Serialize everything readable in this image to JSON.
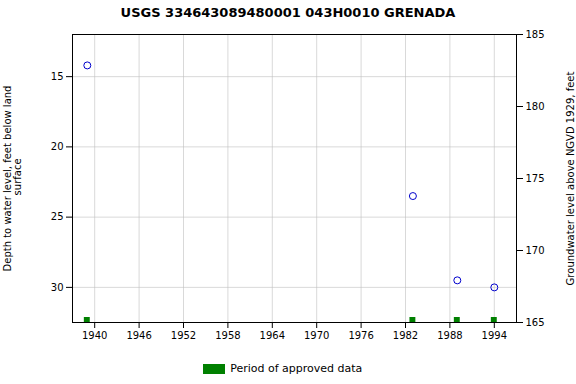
{
  "chart_data": {
    "type": "scatter",
    "title": "USGS 334643089480001 043H0010  GRENADA",
    "x": [
      1939,
      1983,
      1989,
      1994
    ],
    "series": [
      {
        "color": "#0000cc",
        "marker": "circle",
        "type": "scatter",
        "values": [
          14.2,
          23.5,
          29.5,
          30.0
        ]
      },
      {
        "name": "Period of approved data",
        "color": "#008000",
        "type": "bar",
        "x": [
          1939,
          1983,
          1989,
          1994
        ]
      }
    ],
    "xlim": [
      1937,
      1997
    ],
    "xticks": [
      1940,
      1946,
      1952,
      1958,
      1964,
      1970,
      1976,
      1982,
      1988,
      1994
    ],
    "ylim": [
      32.5,
      12.0
    ],
    "yticks": [
      15,
      20,
      25,
      30
    ],
    "y2lim": [
      165,
      185
    ],
    "y2ticks": [
      165,
      170,
      175,
      180,
      185
    ],
    "ylabel": "Depth to water level, feet below land\n surface",
    "y2label": "Groundwater level above NGVD 1929, feet",
    "grid": true,
    "legend": "bottom"
  }
}
